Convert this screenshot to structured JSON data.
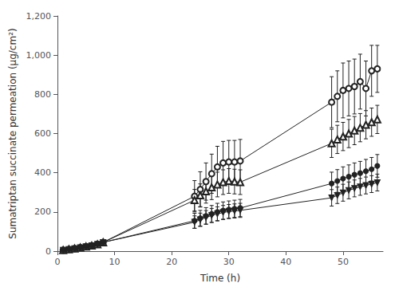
{
  "chart_data": {
    "type": "line",
    "xlabel": "Time (h)",
    "ylabel": "Sumatriptan succinate permeation (μg/cm²)",
    "xlim": [
      0,
      57
    ],
    "ylim": [
      0,
      1200
    ],
    "xticks": [
      0,
      10,
      20,
      30,
      40,
      50
    ],
    "yticks": [
      0,
      200,
      400,
      600,
      800,
      1000,
      1200
    ],
    "grid": false,
    "x": [
      1,
      2,
      3,
      4,
      5,
      6,
      7,
      8,
      24,
      25,
      26,
      27,
      28,
      29,
      30,
      31,
      32,
      48,
      49,
      50,
      51,
      52,
      53,
      54,
      55,
      56
    ],
    "series": [
      {
        "marker": "circle-open",
        "color": "#222222",
        "values": [
          5,
          9,
          13,
          18,
          23,
          28,
          35,
          45,
          280,
          315,
          355,
          395,
          430,
          450,
          455,
          455,
          460,
          760,
          790,
          820,
          830,
          840,
          865,
          830,
          920,
          930
        ],
        "yerr": [
          3,
          4,
          5,
          6,
          7,
          8,
          10,
          12,
          80,
          90,
          95,
          100,
          105,
          110,
          110,
          110,
          110,
          130,
          130,
          140,
          140,
          140,
          140,
          140,
          130,
          120
        ]
      },
      {
        "marker": "triangle-open",
        "color": "#222222",
        "values": [
          5,
          9,
          13,
          18,
          23,
          28,
          35,
          45,
          260,
          285,
          305,
          325,
          340,
          352,
          358,
          355,
          352,
          550,
          570,
          585,
          600,
          615,
          630,
          645,
          658,
          672
        ],
        "yerr": [
          3,
          4,
          5,
          6,
          7,
          8,
          10,
          12,
          55,
          58,
          60,
          62,
          63,
          63,
          63,
          63,
          63,
          72,
          72,
          72,
          72,
          72,
          72,
          72,
          72,
          72
        ]
      },
      {
        "marker": "circle",
        "color": "#222222",
        "values": [
          5,
          9,
          13,
          18,
          23,
          28,
          35,
          45,
          155,
          168,
          180,
          190,
          200,
          207,
          212,
          216,
          220,
          345,
          358,
          370,
          380,
          390,
          398,
          408,
          418,
          435
        ],
        "yerr": [
          3,
          4,
          5,
          6,
          7,
          8,
          10,
          12,
          38,
          40,
          42,
          43,
          44,
          44,
          44,
          44,
          44,
          58,
          58,
          60,
          60,
          60,
          60,
          60,
          60,
          58
        ]
      },
      {
        "marker": "triangle-down",
        "color": "#222222",
        "values": [
          5,
          9,
          13,
          18,
          23,
          28,
          35,
          45,
          148,
          160,
          172,
          182,
          190,
          197,
          202,
          205,
          208,
          272,
          285,
          298,
          310,
          320,
          328,
          335,
          342,
          350
        ],
        "yerr": [
          3,
          4,
          5,
          6,
          7,
          8,
          10,
          12,
          32,
          34,
          35,
          36,
          36,
          36,
          36,
          36,
          36,
          42,
          42,
          43,
          43,
          43,
          43,
          43,
          43,
          43
        ]
      }
    ]
  }
}
